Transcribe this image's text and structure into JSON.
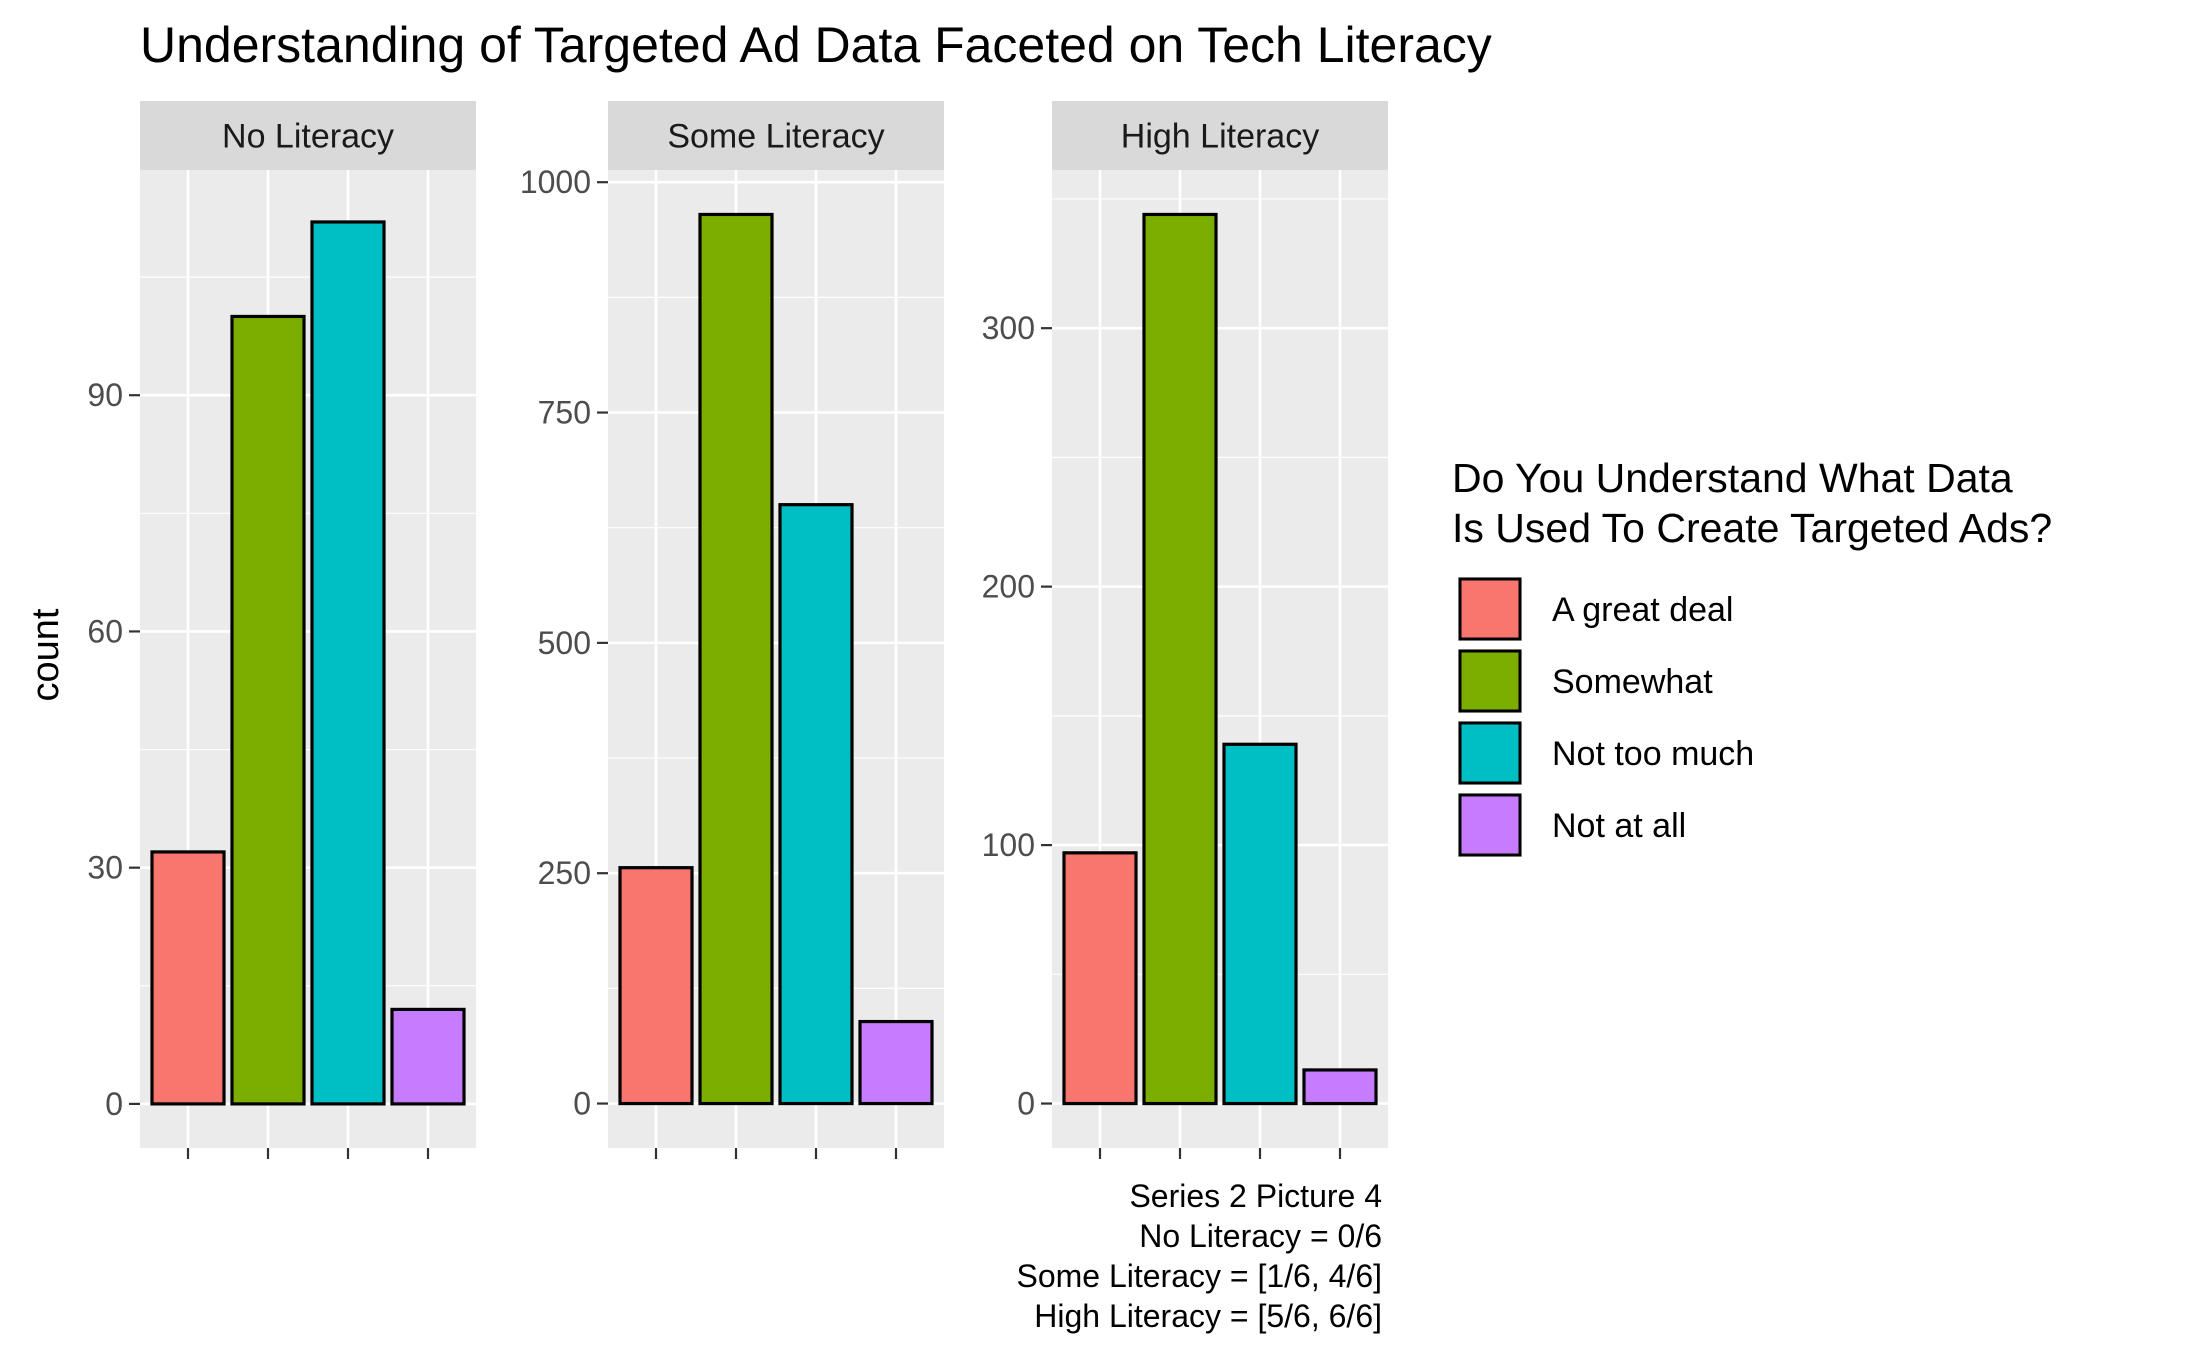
{
  "chart_data": {
    "type": "bar",
    "title": "Understanding of Targeted Ad Data Faceted on Tech Literacy",
    "ylabel": "count",
    "xlabel": "",
    "categories": [
      "A great deal",
      "Somewhat",
      "Not too much",
      "Not at all"
    ],
    "colors": [
      "#F8766D",
      "#7CAE00",
      "#00BFC4",
      "#C77CFF"
    ],
    "legend": {
      "title_lines": [
        "Do You Understand What Data",
        "Is Used To Create Targeted Ads?"
      ],
      "placement": "right",
      "entries": [
        "A great deal",
        "Somewhat",
        "Not too much",
        "Not at all"
      ]
    },
    "facets": [
      {
        "name": "No Literacy",
        "values": [
          32,
          100,
          112,
          12
        ],
        "ylim": [
          -5.6,
          118.6
        ],
        "yticks": [
          0,
          30,
          60,
          90
        ]
      },
      {
        "name": "Some Literacy",
        "values": [
          256,
          965,
          650,
          89
        ],
        "ylim": [
          -48.25,
          1013.25
        ],
        "yticks": [
          0,
          250,
          500,
          750,
          1000
        ]
      },
      {
        "name": "High Literacy",
        "values": [
          97,
          344,
          139,
          13
        ],
        "ylim": [
          -17.2,
          361.2
        ],
        "yticks": [
          0,
          100,
          200,
          300
        ]
      }
    ],
    "grid": true,
    "caption_lines": [
      "Series 2 Picture 4",
      "No Literacy = 0/6",
      "Some Literacy = [1/6, 4/6]",
      "High Literacy = [5/6, 6/6]"
    ]
  }
}
